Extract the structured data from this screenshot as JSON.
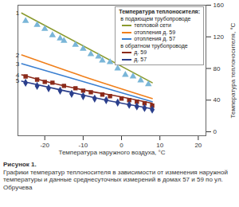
{
  "chart_data": {
    "type": "line",
    "x_label": "Температура наружного воздуха, °C",
    "y_label": "Температура теплоносителя, °C",
    "caption_title": "Рисунок 1.",
    "caption": "Графики температур теплоносителя в зависимости от изменения наружной температуры и данные среднесуточных измерений в домах 57 и 59 по ул. Обручева",
    "legend_title": "Температура теплоносителя:",
    "legend": "top-right",
    "grid": false,
    "xlim": [
      -27,
      22
    ],
    "xticks": [
      -20,
      -10,
      0,
      10,
      20
    ],
    "ylim": [
      -5,
      160
    ],
    "yticks": [
      0,
      40,
      80,
      120,
      160
    ],
    "series": [
      {
        "name": "тепловой сети",
        "group": "в подающем трубопроводе",
        "label": "1",
        "color": "#8a9a2e",
        "type": "line",
        "x": [
          -26,
          8
        ],
        "values": [
          150,
          62
        ]
      },
      {
        "name": "отопления д. 59",
        "group": "в подающем трубопроводе",
        "label": "2",
        "color": "#f07f1a",
        "type": "line",
        "x": [
          -26,
          -10,
          8
        ],
        "values": [
          97,
          70,
          42
        ]
      },
      {
        "name": "отопления д. 57",
        "group": "в подающем трубопроводе",
        "label": "3",
        "color": "#3a7fd0",
        "type": "line",
        "x": [
          -26,
          8
        ],
        "values": [
          86,
          38
        ]
      },
      {
        "name": "д. 59",
        "group": "в обратном трубопроводе",
        "label": "4",
        "color": "#8b2a1a",
        "type": "line",
        "x": [
          -26,
          -20,
          -10,
          0,
          8
        ],
        "values": [
          72,
          64,
          53,
          44,
          36
        ]
      },
      {
        "name": "д. 57",
        "group": "в обратном трубопроводе",
        "label": "5",
        "color": "#2b3f8c",
        "type": "line",
        "x": [
          -26,
          -15,
          -5,
          8
        ],
        "values": [
          64,
          52,
          41,
          29
        ]
      },
      {
        "type": "scatter",
        "marker": "triangle",
        "color": "#7ab6d8",
        "x": [
          -25,
          -22,
          -20,
          -18,
          -16,
          -15,
          -12,
          -10,
          -8,
          -6,
          -5,
          -3,
          -1,
          1,
          3,
          5,
          7
        ],
        "values": [
          140,
          135,
          130,
          122,
          118,
          115,
          110,
          105,
          98,
          95,
          90,
          88,
          80,
          72,
          70,
          65,
          60
        ]
      },
      {
        "type": "scatter",
        "marker": "square",
        "color": "#8b2a1a",
        "x": [
          -25,
          -22,
          -20,
          -18,
          -15,
          -12,
          -10,
          -8,
          -5,
          -3,
          0,
          2,
          4,
          6,
          8
        ],
        "values": [
          70,
          66,
          63,
          62,
          58,
          55,
          52,
          50,
          47,
          45,
          42,
          40,
          38,
          36,
          33
        ]
      },
      {
        "type": "scatter",
        "marker": "diamond",
        "color": "#2b3f8c",
        "x": [
          -25,
          -22,
          -19,
          -16,
          -13,
          -10,
          -7,
          -4,
          -1,
          2,
          4,
          6,
          8
        ],
        "values": [
          62,
          58,
          55,
          52,
          48,
          45,
          42,
          40,
          37,
          34,
          32,
          30,
          28
        ]
      }
    ]
  }
}
